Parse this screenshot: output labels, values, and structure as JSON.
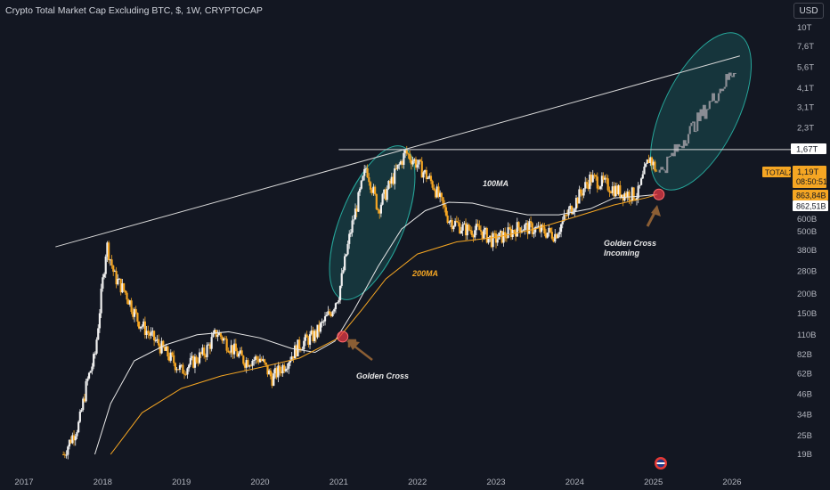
{
  "header": {
    "title": "Crypto Total Market Cap Excluding BTC, $, 1W, CRYPTOCAP",
    "currency_button": "USD"
  },
  "chart_data": {
    "type": "candlestick",
    "scale": "log",
    "y_ticks": [
      "10T",
      "7,6T",
      "5,6T",
      "4,1T",
      "3,1T",
      "2,3T",
      "600B",
      "500B",
      "380B",
      "280B",
      "200B",
      "150B",
      "110B",
      "82B",
      "62B",
      "46B",
      "34B",
      "25B",
      "19B"
    ],
    "y_tick_values": [
      10000,
      7600,
      5600,
      4100,
      3100,
      2300,
      600,
      500,
      380,
      280,
      200,
      150,
      110,
      82,
      62,
      46,
      34,
      25,
      19
    ],
    "x_ticks": [
      "2017",
      "2018",
      "2019",
      "2020",
      "2021",
      "2022",
      "2023",
      "2024",
      "2025",
      "2026"
    ],
    "price_labels": {
      "resistance": "1,67T",
      "symbol": "TOTAL2",
      "last_price": "1,19T",
      "countdown": "08:50:51",
      "ma100_value": "863,84B",
      "ma200_value": "862,51B"
    },
    "annotations": {
      "ma100": "100MA",
      "ma200": "200MA",
      "golden_cross": "Golden Cross",
      "golden_cross_incoming_1": "Golden Cross",
      "golden_cross_incoming_2": "Incoming"
    },
    "series": [
      {
        "date": "2017.5",
        "value": 19
      },
      {
        "date": "2017.6",
        "value": 24
      },
      {
        "date": "2017.7",
        "value": 30
      },
      {
        "date": "2017.8",
        "value": 55
      },
      {
        "date": "2017.9",
        "value": 80
      },
      {
        "date": "2017.95",
        "value": 140
      },
      {
        "date": "2018.05",
        "value": 420
      },
      {
        "date": "2018.15",
        "value": 260
      },
      {
        "date": "2018.3",
        "value": 200
      },
      {
        "date": "2018.45",
        "value": 135
      },
      {
        "date": "2018.6",
        "value": 110
      },
      {
        "date": "2018.8",
        "value": 85
      },
      {
        "date": "2019.0",
        "value": 65
      },
      {
        "date": "2019.3",
        "value": 85
      },
      {
        "date": "2019.45",
        "value": 115
      },
      {
        "date": "2019.6",
        "value": 95
      },
      {
        "date": "2019.8",
        "value": 75
      },
      {
        "date": "2020.0",
        "value": 78
      },
      {
        "date": "2020.15",
        "value": 58
      },
      {
        "date": "2020.3",
        "value": 70
      },
      {
        "date": "2020.5",
        "value": 95
      },
      {
        "date": "2020.7",
        "value": 110
      },
      {
        "date": "2020.9",
        "value": 155
      },
      {
        "date": "2021.0",
        "value": 200
      },
      {
        "date": "2021.15",
        "value": 500
      },
      {
        "date": "2021.35",
        "value": 1300
      },
      {
        "date": "2021.5",
        "value": 700
      },
      {
        "date": "2021.65",
        "value": 1000
      },
      {
        "date": "2021.85",
        "value": 1600
      },
      {
        "date": "2022.0",
        "value": 1350
      },
      {
        "date": "2022.2",
        "value": 1000
      },
      {
        "date": "2022.4",
        "value": 600
      },
      {
        "date": "2022.6",
        "value": 520
      },
      {
        "date": "2022.8",
        "value": 510
      },
      {
        "date": "2022.95",
        "value": 440
      },
      {
        "date": "2023.1",
        "value": 470
      },
      {
        "date": "2023.3",
        "value": 540
      },
      {
        "date": "2023.5",
        "value": 520
      },
      {
        "date": "2023.75",
        "value": 480
      },
      {
        "date": "2023.95",
        "value": 700
      },
      {
        "date": "2024.2",
        "value": 1100
      },
      {
        "date": "2024.4",
        "value": 1000
      },
      {
        "date": "2024.6",
        "value": 880
      },
      {
        "date": "2024.8",
        "value": 860
      },
      {
        "date": "2024.95",
        "value": 1500
      },
      {
        "date": "2025.05",
        "value": 1190
      }
    ]
  }
}
